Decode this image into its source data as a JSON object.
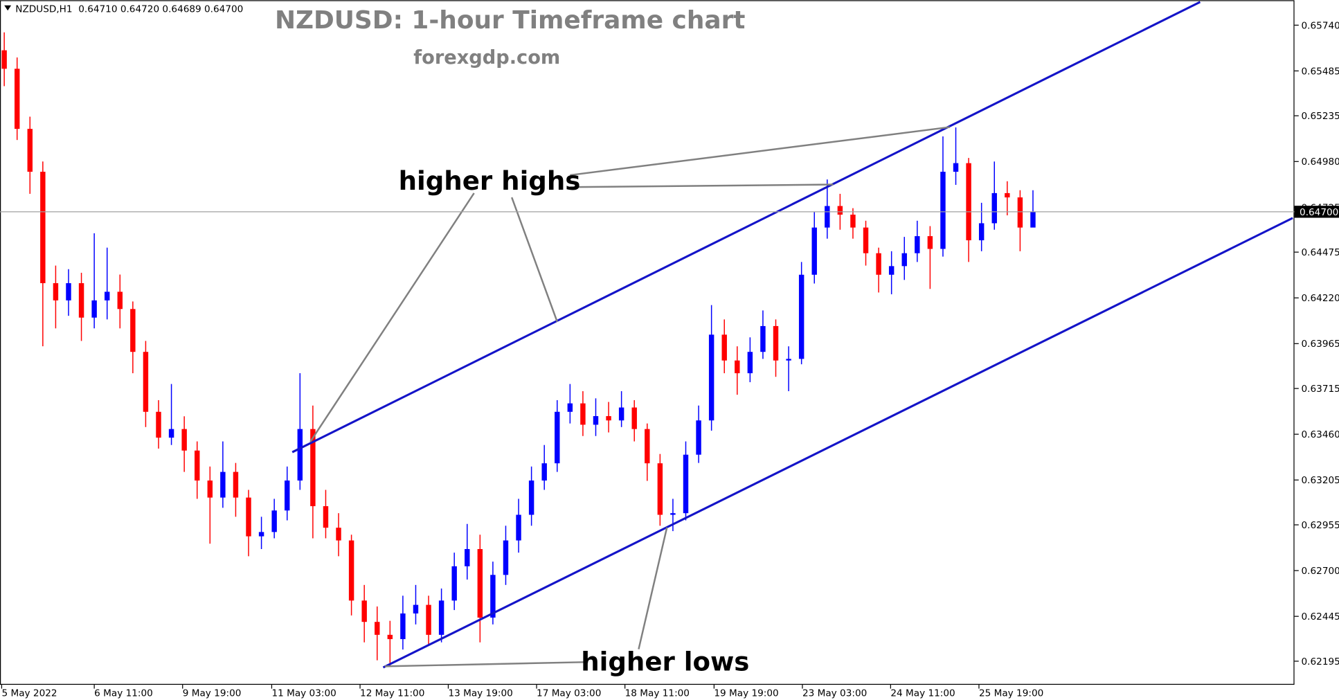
{
  "chart_data": {
    "type": "candlestick",
    "symbol_info": "NZDUSD,H1  0.64710 0.64720 0.64689 0.64700",
    "title": "NZDUSD: 1-hour Timeframe chart",
    "subtitle": "forexgdp.com",
    "up_color": "#0000ff",
    "down_color": "#ff0000",
    "trendline_color": "#1414c8",
    "open": [
      0.656,
      0.65497,
      0.65162,
      0.64923,
      0.64302,
      0.64206,
      0.64302,
      0.6411,
      0.64206,
      0.64254,
      0.64158,
      0.63919,
      0.63585,
      0.63441,
      0.63489,
      0.63369,
      0.63202,
      0.63107,
      0.6325,
      0.63107,
      0.62891,
      0.62915,
      0.63035,
      0.63202,
      0.63489,
      0.63059,
      0.62939,
      0.62868,
      0.62533,
      0.62414,
      0.62342,
      0.62318,
      0.62461,
      0.62509,
      0.62342,
      0.62533,
      0.62724,
      0.6282,
      0.62438,
      0.62676,
      0.62868,
      0.63011,
      0.63202,
      0.63298,
      0.63585,
      0.63632,
      0.63513,
      0.63561,
      0.63537,
      0.63609,
      0.63489,
      0.63298,
      0.63011,
      0.6302,
      0.63346,
      0.63537,
      0.64015,
      0.63871,
      0.638,
      0.63919,
      0.64063,
      0.63871,
      0.6388,
      0.64349,
      0.64612,
      0.64732,
      0.64684,
      0.64612,
      0.64469,
      0.64349,
      0.64397,
      0.64469,
      0.64564,
      0.64493,
      0.64923,
      0.64971,
      0.64541,
      0.64636,
      0.64804,
      0.6478,
      0.64612
    ],
    "high": [
      0.657,
      0.6556,
      0.6523,
      0.6498,
      0.644,
      0.6438,
      0.6436,
      0.6458,
      0.645,
      0.6435,
      0.642,
      0.6398,
      0.6365,
      0.6374,
      0.6356,
      0.6342,
      0.6328,
      0.6342,
      0.633,
      0.6315,
      0.63,
      0.631,
      0.6328,
      0.638,
      0.6362,
      0.6315,
      0.6302,
      0.629,
      0.6262,
      0.625,
      0.6242,
      0.6256,
      0.6262,
      0.6256,
      0.626,
      0.628,
      0.6296,
      0.629,
      0.6275,
      0.6295,
      0.631,
      0.6328,
      0.634,
      0.6365,
      0.6374,
      0.637,
      0.6366,
      0.6364,
      0.637,
      0.6365,
      0.6352,
      0.6335,
      0.631,
      0.6342,
      0.6362,
      0.6418,
      0.641,
      0.6395,
      0.64,
      0.6415,
      0.641,
      0.6395,
      0.6442,
      0.647,
      0.6488,
      0.648,
      0.6472,
      0.6465,
      0.645,
      0.6448,
      0.6456,
      0.6465,
      0.6462,
      0.6512,
      0.6517,
      0.65,
      0.6475,
      0.6498,
      0.6487,
      0.6482,
      0.6482
    ],
    "low": [
      0.654,
      0.651,
      0.648,
      0.6395,
      0.6405,
      0.6412,
      0.6398,
      0.6405,
      0.641,
      0.6405,
      0.638,
      0.635,
      0.6338,
      0.634,
      0.6325,
      0.631,
      0.6285,
      0.6305,
      0.63,
      0.6278,
      0.6282,
      0.6288,
      0.6298,
      0.6315,
      0.6288,
      0.6288,
      0.6278,
      0.6245,
      0.623,
      0.622,
      0.6217,
      0.6226,
      0.624,
      0.6228,
      0.623,
      0.6248,
      0.6265,
      0.623,
      0.624,
      0.6262,
      0.628,
      0.6295,
      0.6315,
      0.6325,
      0.6352,
      0.6345,
      0.6345,
      0.6347,
      0.635,
      0.6342,
      0.632,
      0.6295,
      0.6292,
      0.6298,
      0.633,
      0.6348,
      0.638,
      0.6368,
      0.6375,
      0.6388,
      0.6378,
      0.637,
      0.6385,
      0.643,
      0.6455,
      0.646,
      0.6455,
      0.644,
      0.6425,
      0.6424,
      0.6432,
      0.6442,
      0.6427,
      0.6445,
      0.6485,
      0.6442,
      0.6448,
      0.646,
      0.6468,
      0.6448,
      0.6465
    ],
    "close": [
      0.65497,
      0.65162,
      0.64923,
      0.64302,
      0.64206,
      0.64302,
      0.6411,
      0.64206,
      0.64254,
      0.64158,
      0.63919,
      0.63585,
      0.63441,
      0.63489,
      0.63369,
      0.63202,
      0.63107,
      0.6325,
      0.63107,
      0.62891,
      0.62915,
      0.63035,
      0.63202,
      0.63489,
      0.63059,
      0.62939,
      0.62868,
      0.62533,
      0.62414,
      0.62342,
      0.62318,
      0.62461,
      0.62509,
      0.62342,
      0.62533,
      0.62724,
      0.6282,
      0.62438,
      0.62676,
      0.62868,
      0.63011,
      0.63202,
      0.63298,
      0.63585,
      0.63632,
      0.63513,
      0.63561,
      0.63537,
      0.63609,
      0.63489,
      0.63298,
      0.63011,
      0.6302,
      0.63346,
      0.63537,
      0.64015,
      0.63871,
      0.638,
      0.63919,
      0.64063,
      0.63871,
      0.6388,
      0.64349,
      0.64612,
      0.64732,
      0.64684,
      0.64612,
      0.64469,
      0.64349,
      0.64397,
      0.64469,
      0.64564,
      0.64493,
      0.64923,
      0.64971,
      0.64541,
      0.64636,
      0.64804,
      0.6478,
      0.64612,
      0.647
    ],
    "xlim": [
      -0.33,
      100.2
    ],
    "ylim": [
      0.62066,
      0.65879
    ],
    "xticks": [
      {
        "value": -0.2,
        "label": "5 May 2022"
      },
      {
        "value": 7,
        "label": "6 May 11:00"
      },
      {
        "value": 13.87,
        "label": "9 May 19:00"
      },
      {
        "value": 20.8,
        "label": "11 May 03:00"
      },
      {
        "value": 27.67,
        "label": "12 May 11:00"
      },
      {
        "value": 34.53,
        "label": "13 May 19:00"
      },
      {
        "value": 41.4,
        "label": "17 May 03:00"
      },
      {
        "value": 48.27,
        "label": "18 May 11:00"
      },
      {
        "value": 55.2,
        "label": "19 May 19:00"
      },
      {
        "value": 62.07,
        "label": "23 May 03:00"
      },
      {
        "value": 68.93,
        "label": "24 May 11:00"
      },
      {
        "value": 75.8,
        "label": "25 May 19:00"
      }
    ],
    "yticks": [
      {
        "value": 0.6574,
        "label": "0.65740"
      },
      {
        "value": 0.65485,
        "label": "0.65485"
      },
      {
        "value": 0.65235,
        "label": "0.65235"
      },
      {
        "value": 0.6498,
        "label": "0.64980"
      },
      {
        "value": 0.64725,
        "label": "0.64725"
      },
      {
        "value": 0.64475,
        "label": "0.64475"
      },
      {
        "value": 0.6422,
        "label": "0.64220"
      },
      {
        "value": 0.63965,
        "label": "0.63965"
      },
      {
        "value": 0.63715,
        "label": "0.63715"
      },
      {
        "value": 0.6346,
        "label": "0.63460"
      },
      {
        "value": 0.63205,
        "label": "0.63205"
      },
      {
        "value": 0.62955,
        "label": "0.62955"
      },
      {
        "value": 0.627,
        "label": "0.62700"
      },
      {
        "value": 0.62445,
        "label": "0.62445"
      },
      {
        "value": 0.62195,
        "label": "0.62195"
      }
    ],
    "last_price": {
      "value": 0.647,
      "label": "0.64700"
    },
    "trendlines": [
      {
        "x": [
          22.4,
          93.0
        ],
        "y": [
          0.6336,
          0.65869
        ]
      },
      {
        "x": [
          29.47,
          100.2
        ],
        "y": [
          0.6216,
          0.64665
        ]
      }
    ],
    "annotations": [
      "higher highs",
      "higher lows"
    ]
  }
}
